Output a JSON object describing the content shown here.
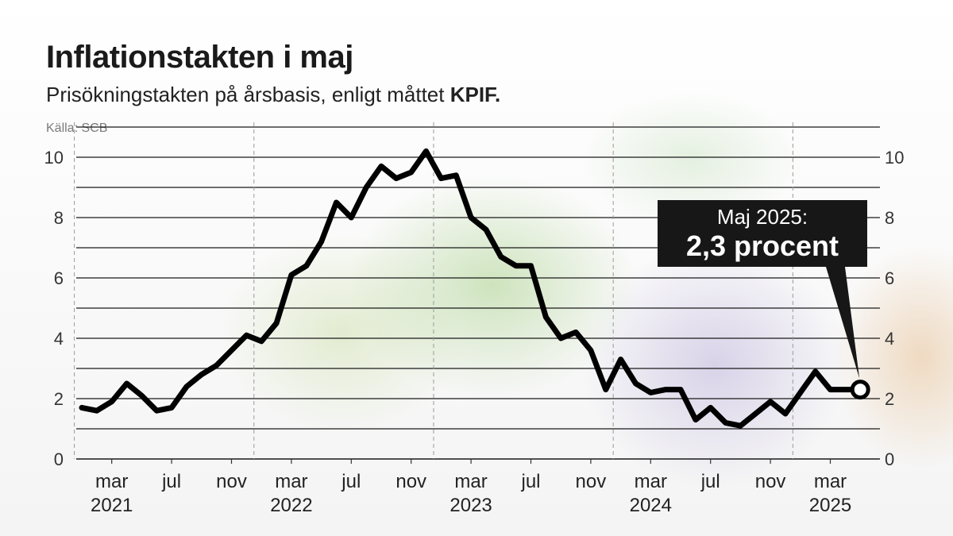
{
  "title": "Inflationstakten i maj",
  "subtitle_prefix": "Prisökningstakten på årsbasis, enligt måttet ",
  "subtitle_emphasis": "KPIF.",
  "source": "Källa: SCB",
  "callout": {
    "line1": "Maj 2025:",
    "line2": "2,3 procent"
  },
  "colors": {
    "line": "#000000",
    "grid": "#1a1a1a",
    "callout_bg": "#171717"
  },
  "chart_data": {
    "type": "line",
    "title": "Inflationstakten i maj",
    "subtitle": "Prisökningstakten på årsbasis, enligt måttet KPIF.",
    "ylim": [
      0,
      11
    ],
    "y_ticks": [
      0,
      2,
      4,
      6,
      8,
      10
    ],
    "grid": "horizontal",
    "x_tick_labels": [
      {
        "month": "mar",
        "year": "2021",
        "date": "2021-03"
      },
      {
        "month": "jul",
        "year": "",
        "date": "2021-07"
      },
      {
        "month": "nov",
        "year": "",
        "date": "2021-11"
      },
      {
        "month": "mar",
        "year": "2022",
        "date": "2022-03"
      },
      {
        "month": "jul",
        "year": "",
        "date": "2022-07"
      },
      {
        "month": "nov",
        "year": "",
        "date": "2022-11"
      },
      {
        "month": "mar",
        "year": "2023",
        "date": "2023-03"
      },
      {
        "month": "jul",
        "year": "",
        "date": "2023-07"
      },
      {
        "month": "nov",
        "year": "",
        "date": "2023-11"
      },
      {
        "month": "mar",
        "year": "2024",
        "date": "2024-03"
      },
      {
        "month": "jul",
        "year": "",
        "date": "2024-07"
      },
      {
        "month": "nov",
        "year": "",
        "date": "2024-11"
      },
      {
        "month": "mar",
        "year": "2025",
        "date": "2025-03"
      }
    ],
    "series": [
      {
        "x": [
          "2021-01",
          "2021-02",
          "2021-03",
          "2021-04",
          "2021-05",
          "2021-06",
          "2021-07",
          "2021-08",
          "2021-09",
          "2021-10",
          "2021-11",
          "2021-12",
          "2022-01",
          "2022-02",
          "2022-03",
          "2022-04",
          "2022-05",
          "2022-06",
          "2022-07",
          "2022-08",
          "2022-09",
          "2022-10",
          "2022-11",
          "2022-12",
          "2023-01",
          "2023-02",
          "2023-03",
          "2023-04",
          "2023-05",
          "2023-06",
          "2023-07",
          "2023-08",
          "2023-09",
          "2023-10",
          "2023-11",
          "2023-12",
          "2024-01",
          "2024-02",
          "2024-03",
          "2024-04",
          "2024-05",
          "2024-06",
          "2024-07",
          "2024-08",
          "2024-09",
          "2024-10",
          "2024-11",
          "2024-12",
          "2025-01",
          "2025-02",
          "2025-03",
          "2025-04",
          "2025-05"
        ],
        "values": [
          1.7,
          1.6,
          1.9,
          2.5,
          2.1,
          1.6,
          1.7,
          2.4,
          2.8,
          3.1,
          3.6,
          4.1,
          3.9,
          4.5,
          6.1,
          6.4,
          7.2,
          8.5,
          8.0,
          9.0,
          9.7,
          9.3,
          9.5,
          10.2,
          9.3,
          9.4,
          8.0,
          7.6,
          6.7,
          6.4,
          6.4,
          4.7,
          4.0,
          4.2,
          3.6,
          2.3,
          3.3,
          2.5,
          2.2,
          2.3,
          2.3,
          1.3,
          1.7,
          1.2,
          1.1,
          1.5,
          1.9,
          1.5,
          2.2,
          2.9,
          2.3,
          2.3,
          2.3
        ]
      }
    ],
    "highlight": {
      "date": "2025-05",
      "value": 2.3
    }
  }
}
